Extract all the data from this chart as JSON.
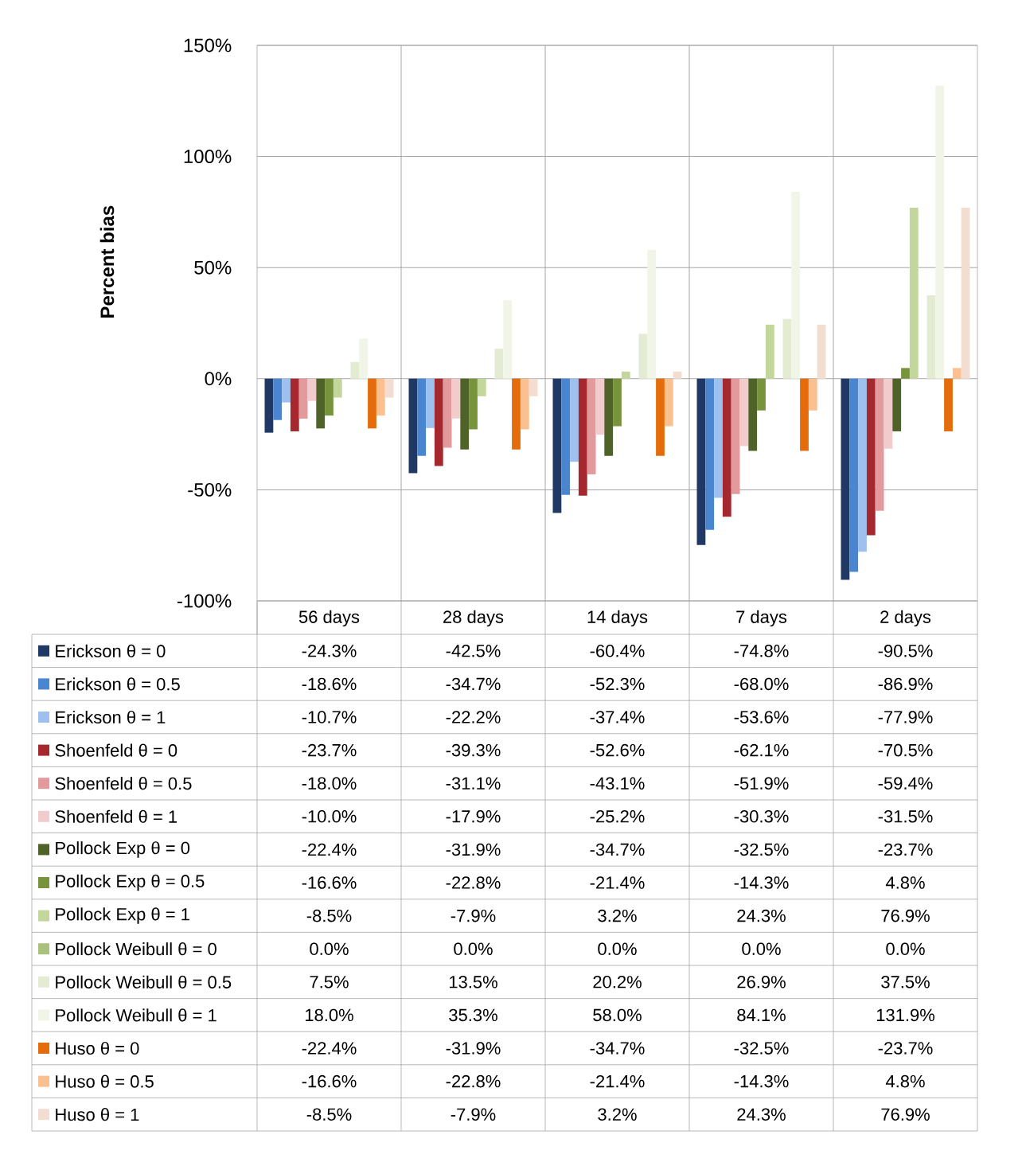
{
  "chart_data": {
    "type": "bar",
    "ylabel": "Percent bias",
    "categories": [
      "56 days",
      "28 days",
      "14 days",
      "7 days",
      "2 days"
    ],
    "ylim": [
      -100,
      150
    ],
    "yticks": [
      {
        "value": -100,
        "label": "-100%"
      },
      {
        "value": -50,
        "label": "-50%"
      },
      {
        "value": 0,
        "label": "0%"
      },
      {
        "value": 50,
        "label": "50%"
      },
      {
        "value": 100,
        "label": "100%"
      },
      {
        "value": 150,
        "label": "150%"
      }
    ],
    "grid": true,
    "legend": "bottom",
    "data_labels": true,
    "series": [
      {
        "name": "Erickson θ = 0",
        "color": "#1f3864",
        "values": [
          -24.3,
          -42.5,
          -60.4,
          -74.8,
          -90.5
        ],
        "value_labels": [
          "-24.3%",
          "-42.5%",
          "-60.4%",
          "-74.8%",
          "-90.5%"
        ]
      },
      {
        "name": "Erickson θ = 0.5",
        "color": "#4a86d0",
        "values": [
          -18.6,
          -34.7,
          -52.3,
          -68.0,
          -86.9
        ],
        "value_labels": [
          "-18.6%",
          "-34.7%",
          "-52.3%",
          "-68.0%",
          "-86.9%"
        ]
      },
      {
        "name": "Erickson θ = 1",
        "color": "#9dc0ee",
        "values": [
          -10.7,
          -22.2,
          -37.4,
          -53.6,
          -77.9
        ],
        "value_labels": [
          "-10.7%",
          "-22.2%",
          "-37.4%",
          "-53.6%",
          "-77.9%"
        ]
      },
      {
        "name": "Shoenfeld θ = 0",
        "color": "#a5282e",
        "values": [
          -23.7,
          -39.3,
          -52.6,
          -62.1,
          -70.5
        ],
        "value_labels": [
          "-23.7%",
          "-39.3%",
          "-52.6%",
          "-62.1%",
          "-70.5%"
        ]
      },
      {
        "name": "Shoenfeld θ = 0.5",
        "color": "#e39a9c",
        "values": [
          -18.0,
          -31.1,
          -43.1,
          -51.9,
          -59.4
        ],
        "value_labels": [
          "-18.0%",
          "-31.1%",
          "-43.1%",
          "-51.9%",
          "-59.4%"
        ]
      },
      {
        "name": "Shoenfeld θ = 1",
        "color": "#f2cccd",
        "values": [
          -10.0,
          -17.9,
          -25.2,
          -30.3,
          -31.5
        ],
        "value_labels": [
          "-10.0%",
          "-17.9%",
          "-25.2%",
          "-30.3%",
          "-31.5%"
        ]
      },
      {
        "name": "Pollock Exp θ = 0",
        "color": "#4f6228",
        "values": [
          -22.4,
          -31.9,
          -34.7,
          -32.5,
          -23.7
        ],
        "value_labels": [
          "-22.4%",
          "-31.9%",
          "-34.7%",
          "-32.5%",
          "-23.7%"
        ]
      },
      {
        "name": "Pollock Exp θ = 0.5",
        "color": "#77933c",
        "values": [
          -16.6,
          -22.8,
          -21.4,
          -14.3,
          4.8
        ],
        "value_labels": [
          "-16.6%",
          "-22.8%",
          "-21.4%",
          "-14.3%",
          "4.8%"
        ]
      },
      {
        "name": "Pollock Exp θ = 1",
        "color": "#c3d69b",
        "values": [
          -8.5,
          -7.9,
          3.2,
          24.3,
          76.9
        ],
        "value_labels": [
          "-8.5%",
          "-7.9%",
          "3.2%",
          "24.3%",
          "76.9%"
        ]
      },
      {
        "name": "Pollock Weibull θ = 0",
        "color": "#a9c17a",
        "values": [
          0.0,
          0.0,
          0.0,
          0.0,
          0.0
        ],
        "value_labels": [
          "0.0%",
          "0.0%",
          "0.0%",
          "0.0%",
          "0.0%"
        ]
      },
      {
        "name": "Pollock Weibull θ = 0.5",
        "color": "#e3ebd2",
        "values": [
          7.5,
          13.5,
          20.2,
          26.9,
          37.5
        ],
        "value_labels": [
          "7.5%",
          "13.5%",
          "20.2%",
          "26.9%",
          "37.5%"
        ]
      },
      {
        "name": "Pollock Weibull θ = 1",
        "color": "#f1f5e8",
        "values": [
          18.0,
          35.3,
          58.0,
          84.1,
          131.9
        ],
        "value_labels": [
          "18.0%",
          "35.3%",
          "58.0%",
          "84.1%",
          "131.9%"
        ]
      },
      {
        "name": "Huso θ = 0",
        "color": "#e46c0a",
        "values": [
          -22.4,
          -31.9,
          -34.7,
          -32.5,
          -23.7
        ],
        "value_labels": [
          "-22.4%",
          "-31.9%",
          "-34.7%",
          "-32.5%",
          "-23.7%"
        ]
      },
      {
        "name": "Huso θ = 0.5",
        "color": "#fac090",
        "values": [
          -16.6,
          -22.8,
          -21.4,
          -14.3,
          4.8
        ],
        "value_labels": [
          "-16.6%",
          "-22.8%",
          "-21.4%",
          "-14.3%",
          "4.8%"
        ]
      },
      {
        "name": "Huso θ = 1",
        "color": "#f2ddd0",
        "values": [
          -8.5,
          -7.9,
          3.2,
          24.3,
          76.9
        ],
        "value_labels": [
          "-8.5%",
          "-7.9%",
          "3.2%",
          "24.3%",
          "76.9%"
        ]
      }
    ]
  }
}
